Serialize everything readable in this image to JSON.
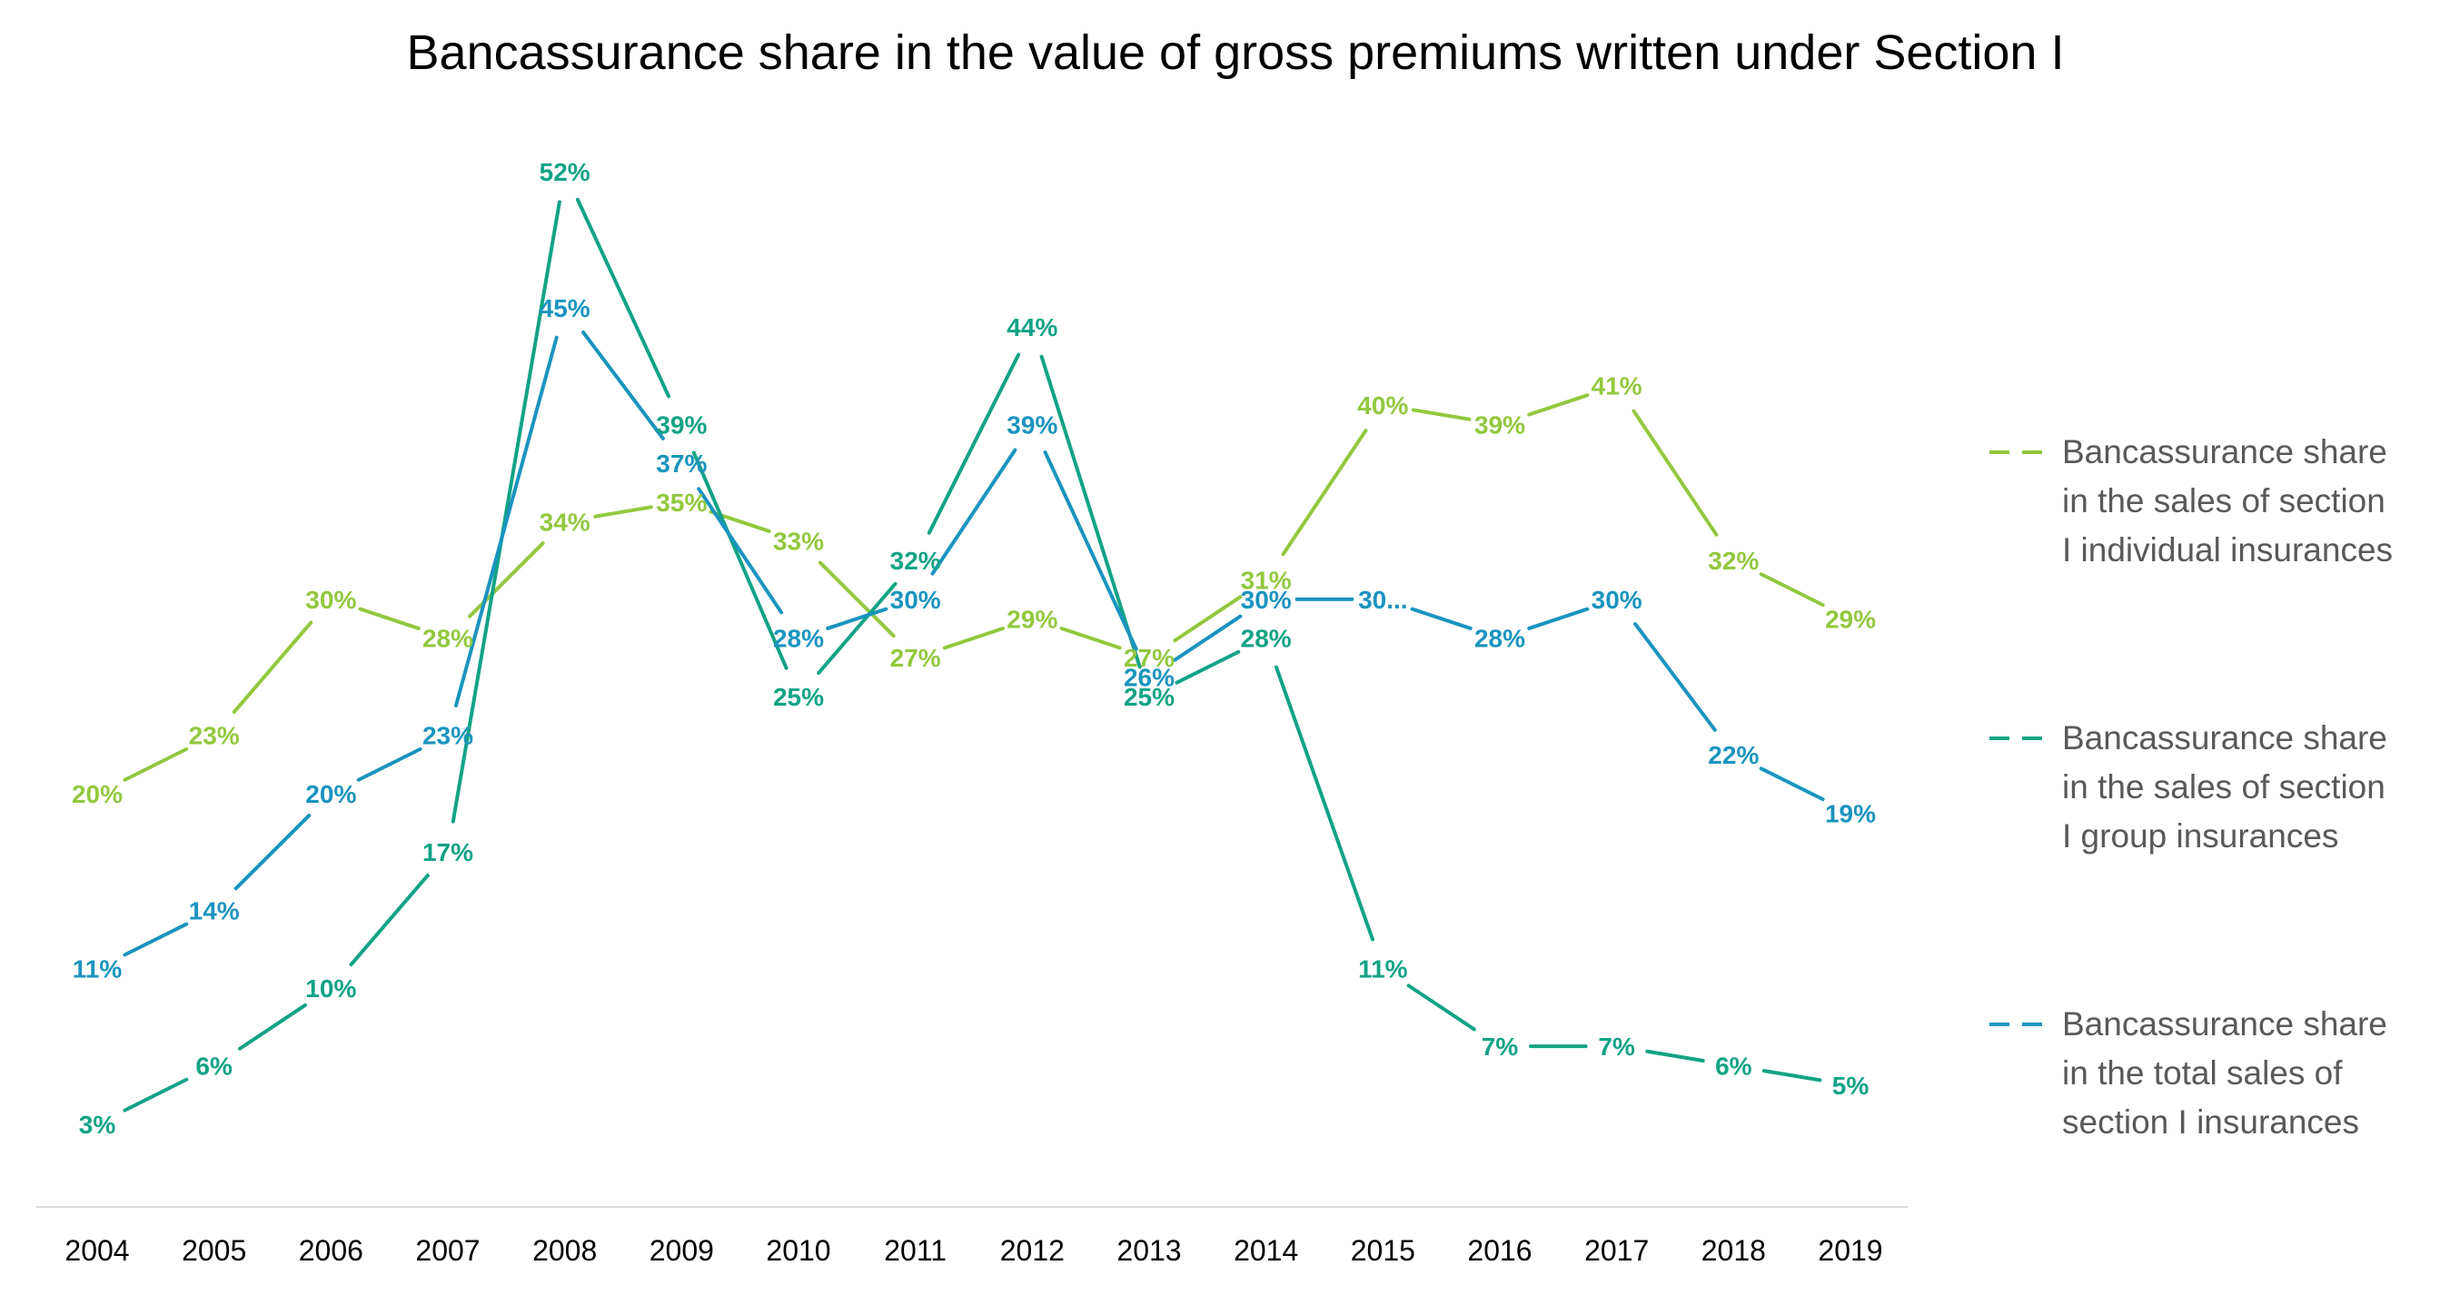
{
  "chart_data": {
    "type": "line",
    "title": "Bancassurance share in the value of gross premiums written under Section I",
    "xlabel": "",
    "ylabel": "",
    "ylim": [
      0,
      0.55
    ],
    "grid": false,
    "legend_position": "right",
    "categories": [
      "2004",
      "2005",
      "2006",
      "2007",
      "2008",
      "2009",
      "2010",
      "2011",
      "2012",
      "2013",
      "2014",
      "2015",
      "2016",
      "2017",
      "2018",
      "2019"
    ],
    "series": [
      {
        "name": "Bancassurance share in the sales of section I individual insurances",
        "legend_lines": [
          "Bancassurance share",
          "in the sales of section",
          "I individual insurances"
        ],
        "color": "#92C83E",
        "values": [
          0.2,
          0.23,
          0.3,
          0.28,
          0.34,
          0.35,
          0.33,
          0.27,
          0.29,
          0.27,
          0.31,
          0.4,
          0.39,
          0.41,
          0.32,
          0.29
        ],
        "labels": [
          "20%",
          "23%",
          "30%",
          "28%",
          "34%",
          "35%",
          "33%",
          "27%",
          "29%",
          "27%",
          "31%",
          "40%",
          "39%",
          "41%",
          "32%",
          "29%"
        ]
      },
      {
        "name": "Bancassurance share in the sales of section I group insurances",
        "legend_lines": [
          "Bancassurance share",
          "in the sales of section",
          "I group insurances"
        ],
        "color": "#12A385",
        "values": [
          0.03,
          0.06,
          0.1,
          0.17,
          0.52,
          0.39,
          0.25,
          0.32,
          0.44,
          0.25,
          0.28,
          0.11,
          0.07,
          0.07,
          0.06,
          0.05
        ],
        "labels": [
          "3%",
          "6%",
          "10%",
          "17%",
          "52%",
          "39%",
          "25%",
          "32%",
          "44%",
          "25%",
          "28%",
          "11%",
          "7%",
          "7%",
          "6%",
          "5%"
        ]
      },
      {
        "name": "Bancassurance share in the total sales of section I insurances",
        "legend_lines": [
          "Bancassurance share",
          "in the total sales of",
          "section I insurances"
        ],
        "color": "#1A94BE",
        "values": [
          0.11,
          0.14,
          0.2,
          0.23,
          0.45,
          0.37,
          0.28,
          0.3,
          0.39,
          0.26,
          0.3,
          0.3,
          0.28,
          0.3,
          0.22,
          0.19
        ],
        "labels": [
          "11%",
          "14%",
          "20%",
          "23%",
          "45%",
          "37%",
          "28%",
          "30%",
          "39%",
          "26%",
          "30%",
          "30...",
          "28%",
          "30%",
          "22%",
          "19%"
        ]
      }
    ]
  }
}
